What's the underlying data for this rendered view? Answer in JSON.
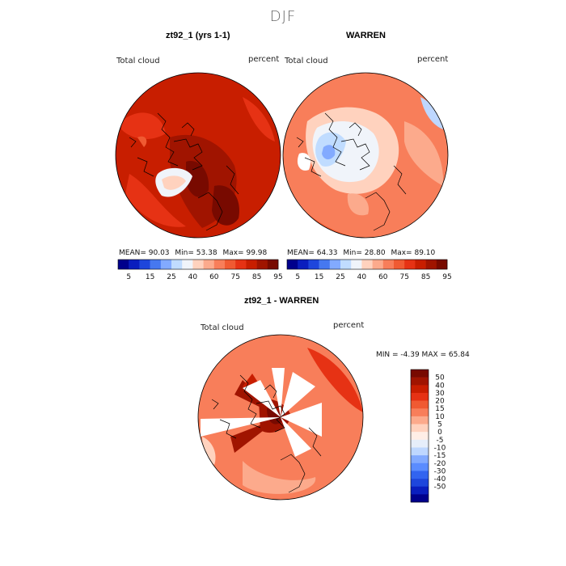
{
  "page": {
    "title": "DJF"
  },
  "colors": {
    "palette_abs": [
      "#00008c",
      "#0a1ebe",
      "#1e46dc",
      "#4678f0",
      "#82aaff",
      "#c0dcff",
      "#f0f4fa",
      "#ffd2be",
      "#fcaa8c",
      "#f87e5a",
      "#f05a32",
      "#e63214",
      "#c81e00",
      "#a01400",
      "#780a00"
    ],
    "palette_diff": [
      "#00008c",
      "#0a1ebe",
      "#1e46dc",
      "#3264f0",
      "#5a8cff",
      "#82aaff",
      "#bed7ff",
      "#e6eefa",
      "#ffeee6",
      "#ffd2be",
      "#fcaa8c",
      "#f87e5a",
      "#f05a32",
      "#e63214",
      "#c81e00",
      "#a01400",
      "#780a00"
    ]
  },
  "panels": [
    {
      "title": "zt92_1 (yrs 1-1)",
      "field": "Total cloud",
      "units": "percent",
      "stats": {
        "mean_label": "MEAN=",
        "mean": "90.03",
        "min_label": "Min=",
        "min": "53.38",
        "max_label": "Max=",
        "max": "99.98"
      },
      "colorbar_ticks": [
        "5",
        "15",
        "25",
        "40",
        "60",
        "75",
        "85",
        "95"
      ]
    },
    {
      "title": "WARREN",
      "field": "Total cloud",
      "units": "percent",
      "stats": {
        "mean_label": "MEAN=",
        "mean": "64.33",
        "min_label": "Min=",
        "min": "28.80",
        "max_label": "Max=",
        "max": "89.10"
      },
      "colorbar_ticks": [
        "5",
        "15",
        "25",
        "40",
        "60",
        "75",
        "85",
        "95"
      ]
    },
    {
      "title": "zt92_1 - WARREN",
      "field": "Total cloud",
      "units": "percent",
      "stats_text": "MIN =   -4.39 MAX =   65.84",
      "colorbar_ticks": [
        "50",
        "40",
        "30",
        "20",
        "15",
        "10",
        "5",
        "0",
        "-5",
        "-10",
        "-15",
        "-20",
        "-30",
        "-40",
        "-50"
      ]
    }
  ],
  "chart_data": [
    {
      "type": "heatmap",
      "title": "zt92_1 (yrs 1-1)",
      "variable": "Total cloud",
      "units": "percent",
      "projection": "north polar stereographic",
      "mean": 90.03,
      "min": 53.38,
      "max": 99.98,
      "colorbar_levels": [
        5,
        15,
        25,
        40,
        60,
        75,
        85,
        95
      ]
    },
    {
      "type": "heatmap",
      "title": "WARREN",
      "variable": "Total cloud",
      "units": "percent",
      "projection": "north polar stereographic",
      "mean": 64.33,
      "min": 28.8,
      "max": 89.1,
      "colorbar_levels": [
        5,
        15,
        25,
        40,
        60,
        75,
        85,
        95
      ]
    },
    {
      "type": "heatmap",
      "title": "zt92_1 - WARREN",
      "variable": "Total cloud",
      "units": "percent",
      "projection": "north polar stereographic",
      "min": -4.39,
      "max": 65.84,
      "colorbar_levels": [
        50,
        40,
        30,
        20,
        15,
        10,
        5,
        0,
        -5,
        -10,
        -15,
        -20,
        -30,
        -40,
        -50
      ]
    }
  ]
}
